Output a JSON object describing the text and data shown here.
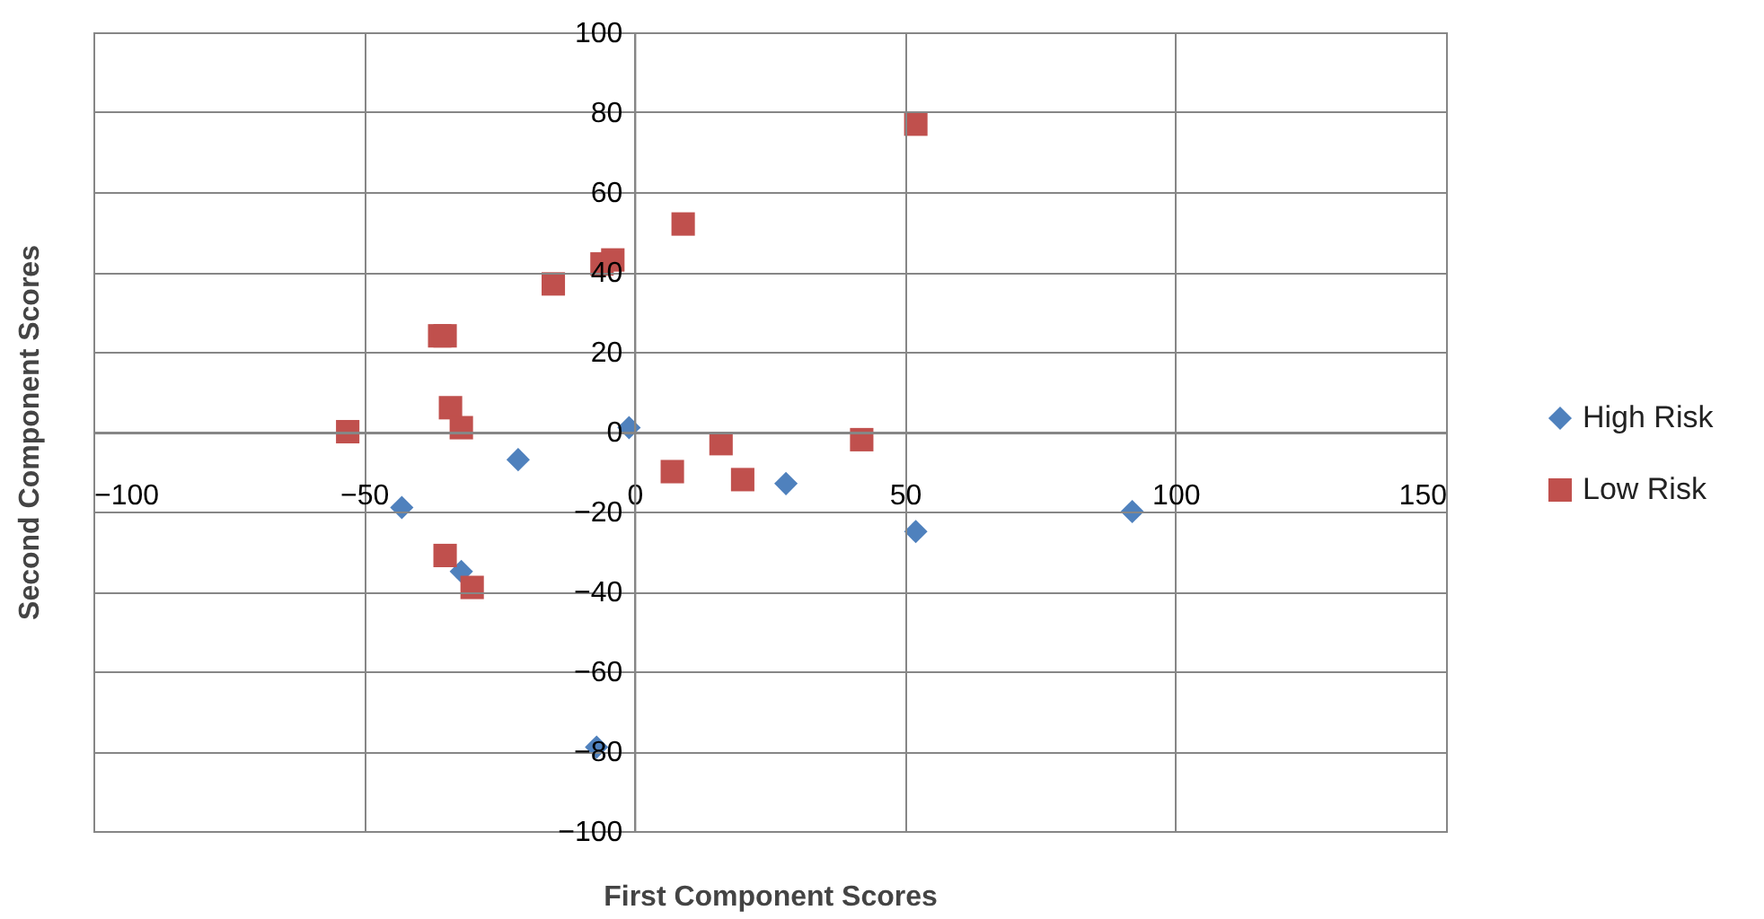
{
  "chart_data": {
    "type": "scatter",
    "xlabel": "First Component Scores",
    "ylabel": "Second Component Scores",
    "xlim": [
      -100,
      150
    ],
    "xticks": [
      -100,
      -50,
      0,
      50,
      100,
      150
    ],
    "ylim": [
      -100,
      100
    ],
    "yticks": [
      -100,
      -80,
      -60,
      -40,
      -20,
      0,
      20,
      40,
      60,
      80,
      100
    ],
    "grid": true,
    "legend": "right",
    "series": [
      {
        "name": "High Risk",
        "color": "#4f81bd",
        "marker": "diamond",
        "x": [
          -1,
          -21.5,
          -43,
          -32,
          28,
          52,
          92,
          -7
        ],
        "values": [
          1,
          -7,
          -19,
          -35,
          -13,
          -25,
          -20,
          -79
        ]
      },
      {
        "name": "Low Risk",
        "color": "#c0504d",
        "marker": "square",
        "x": [
          -53,
          -36,
          -35,
          -34,
          -32,
          -15,
          -6,
          -4,
          9,
          52,
          7,
          16,
          20,
          42,
          -35,
          -30
        ],
        "values": [
          0,
          24,
          24,
          6,
          1,
          37,
          42,
          43,
          52,
          77,
          -10,
          -3,
          -12,
          -2,
          -31,
          -39
        ]
      }
    ]
  }
}
